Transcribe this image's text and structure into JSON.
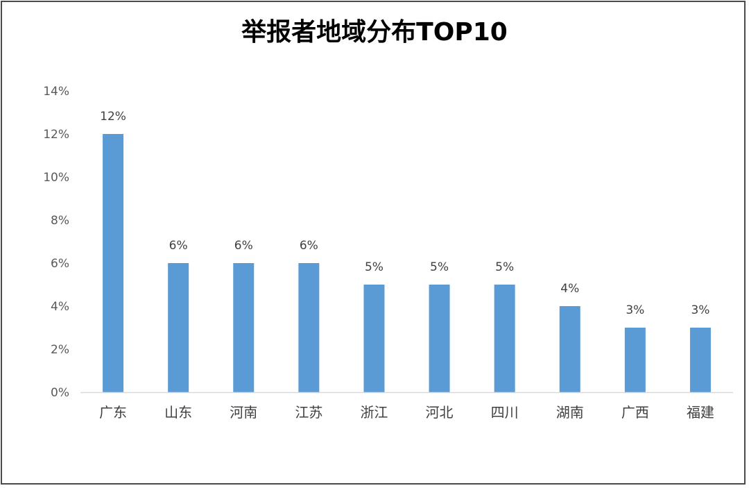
{
  "chart_data": {
    "type": "bar",
    "title": "举报者地域分布TOP10",
    "categories": [
      "广东",
      "山东",
      "河南",
      "江苏",
      "浙江",
      "河北",
      "四川",
      "湖南",
      "广西",
      "福建"
    ],
    "values": [
      12,
      6,
      6,
      6,
      5,
      5,
      5,
      4,
      3,
      3
    ],
    "data_labels": [
      "12%",
      "6%",
      "6%",
      "6%",
      "5%",
      "5%",
      "5%",
      "4%",
      "3%",
      "3%"
    ],
    "yticks": [
      "0%",
      "2%",
      "4%",
      "6%",
      "8%",
      "10%",
      "12%",
      "14%"
    ],
    "ylim": [
      0,
      14
    ],
    "unit": "%",
    "grid": false,
    "legend": "none",
    "bar_color": "#5b9bd5",
    "axis_color": "#d9d9d9"
  }
}
